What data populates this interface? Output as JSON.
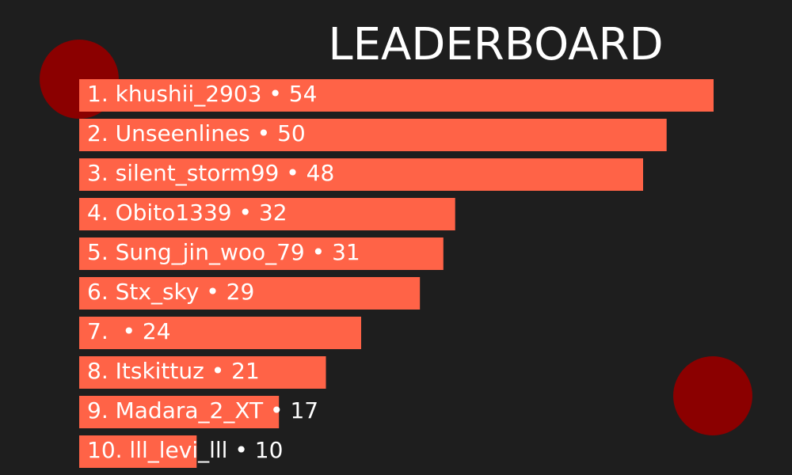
{
  "title": "LEADERBOARD",
  "colors": {
    "background": "#1e1e1e",
    "bar": "#ff6347",
    "circle": "#8b0000",
    "text": "#ffffff"
  },
  "chart_data": {
    "type": "bar",
    "orientation": "horizontal",
    "title": "LEADERBOARD",
    "xlim": [
      0,
      54
    ],
    "categories": [
      "khushii_2903",
      "Unseenlines",
      "silent_storm99",
      "Obito1339",
      "Sung_jin_woo_79",
      "Stx_sky",
      "",
      "Itskittuz",
      "Madara_2_XT",
      "lll_levi_lll"
    ],
    "values": [
      54,
      50,
      48,
      32,
      31,
      29,
      24,
      21,
      17,
      10
    ],
    "labels": [
      "1. khushii_2903 • 54",
      "2. Unseenlines • 50",
      "3. silent_storm99 • 48",
      "4. Obito1339 • 32",
      "5. Sung_jin_woo_79 • 31",
      "6. Stx_sky • 29",
      "7.  • 24",
      "8. Itskittuz • 21",
      "9. Madara_2_XT • 17",
      "10. lll_levi_lll • 10"
    ],
    "grid": false,
    "legend": "none"
  }
}
